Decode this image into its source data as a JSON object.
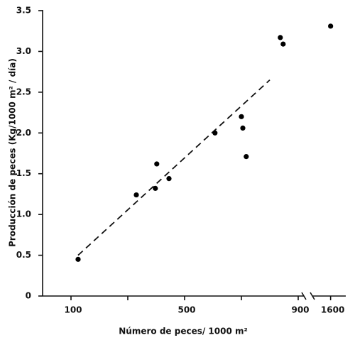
{
  "chart_data": {
    "type": "scatter",
    "x_label": "Número de peces/ 1000 m²",
    "y_label": "Producción de peces (Kg/1000 m² / día)",
    "x_segments": [
      {
        "xlim": [
          0,
          920
        ],
        "xticks": [
          100,
          500,
          900
        ],
        "xminorticks": [
          300,
          700
        ]
      },
      {
        "xlim": [
          1540,
          1650
        ],
        "xticks": [
          1600
        ],
        "xminorticks": []
      }
    ],
    "ylim": [
      0,
      3.5
    ],
    "yticks": [
      0,
      0.5,
      {
        "value": 1,
        "label": "1.0"
      },
      1.5,
      {
        "value": 2,
        "label": "2.0"
      },
      2.5,
      {
        "value": 3,
        "label": "3.0"
      },
      3.5
    ],
    "series": [
      {
        "color": "#000000",
        "x": [
          125,
          330,
          397,
          402,
          445,
          607,
          700,
          705,
          717,
          837,
          847,
          1600
        ],
        "values": [
          0.45,
          1.24,
          1.32,
          1.62,
          1.44,
          2.0,
          2.2,
          2.06,
          1.71,
          3.17,
          3.09,
          3.31
        ]
      }
    ],
    "trendline": {
      "x": [
        125,
        800
      ],
      "values": [
        0.5,
        2.65
      ]
    }
  }
}
